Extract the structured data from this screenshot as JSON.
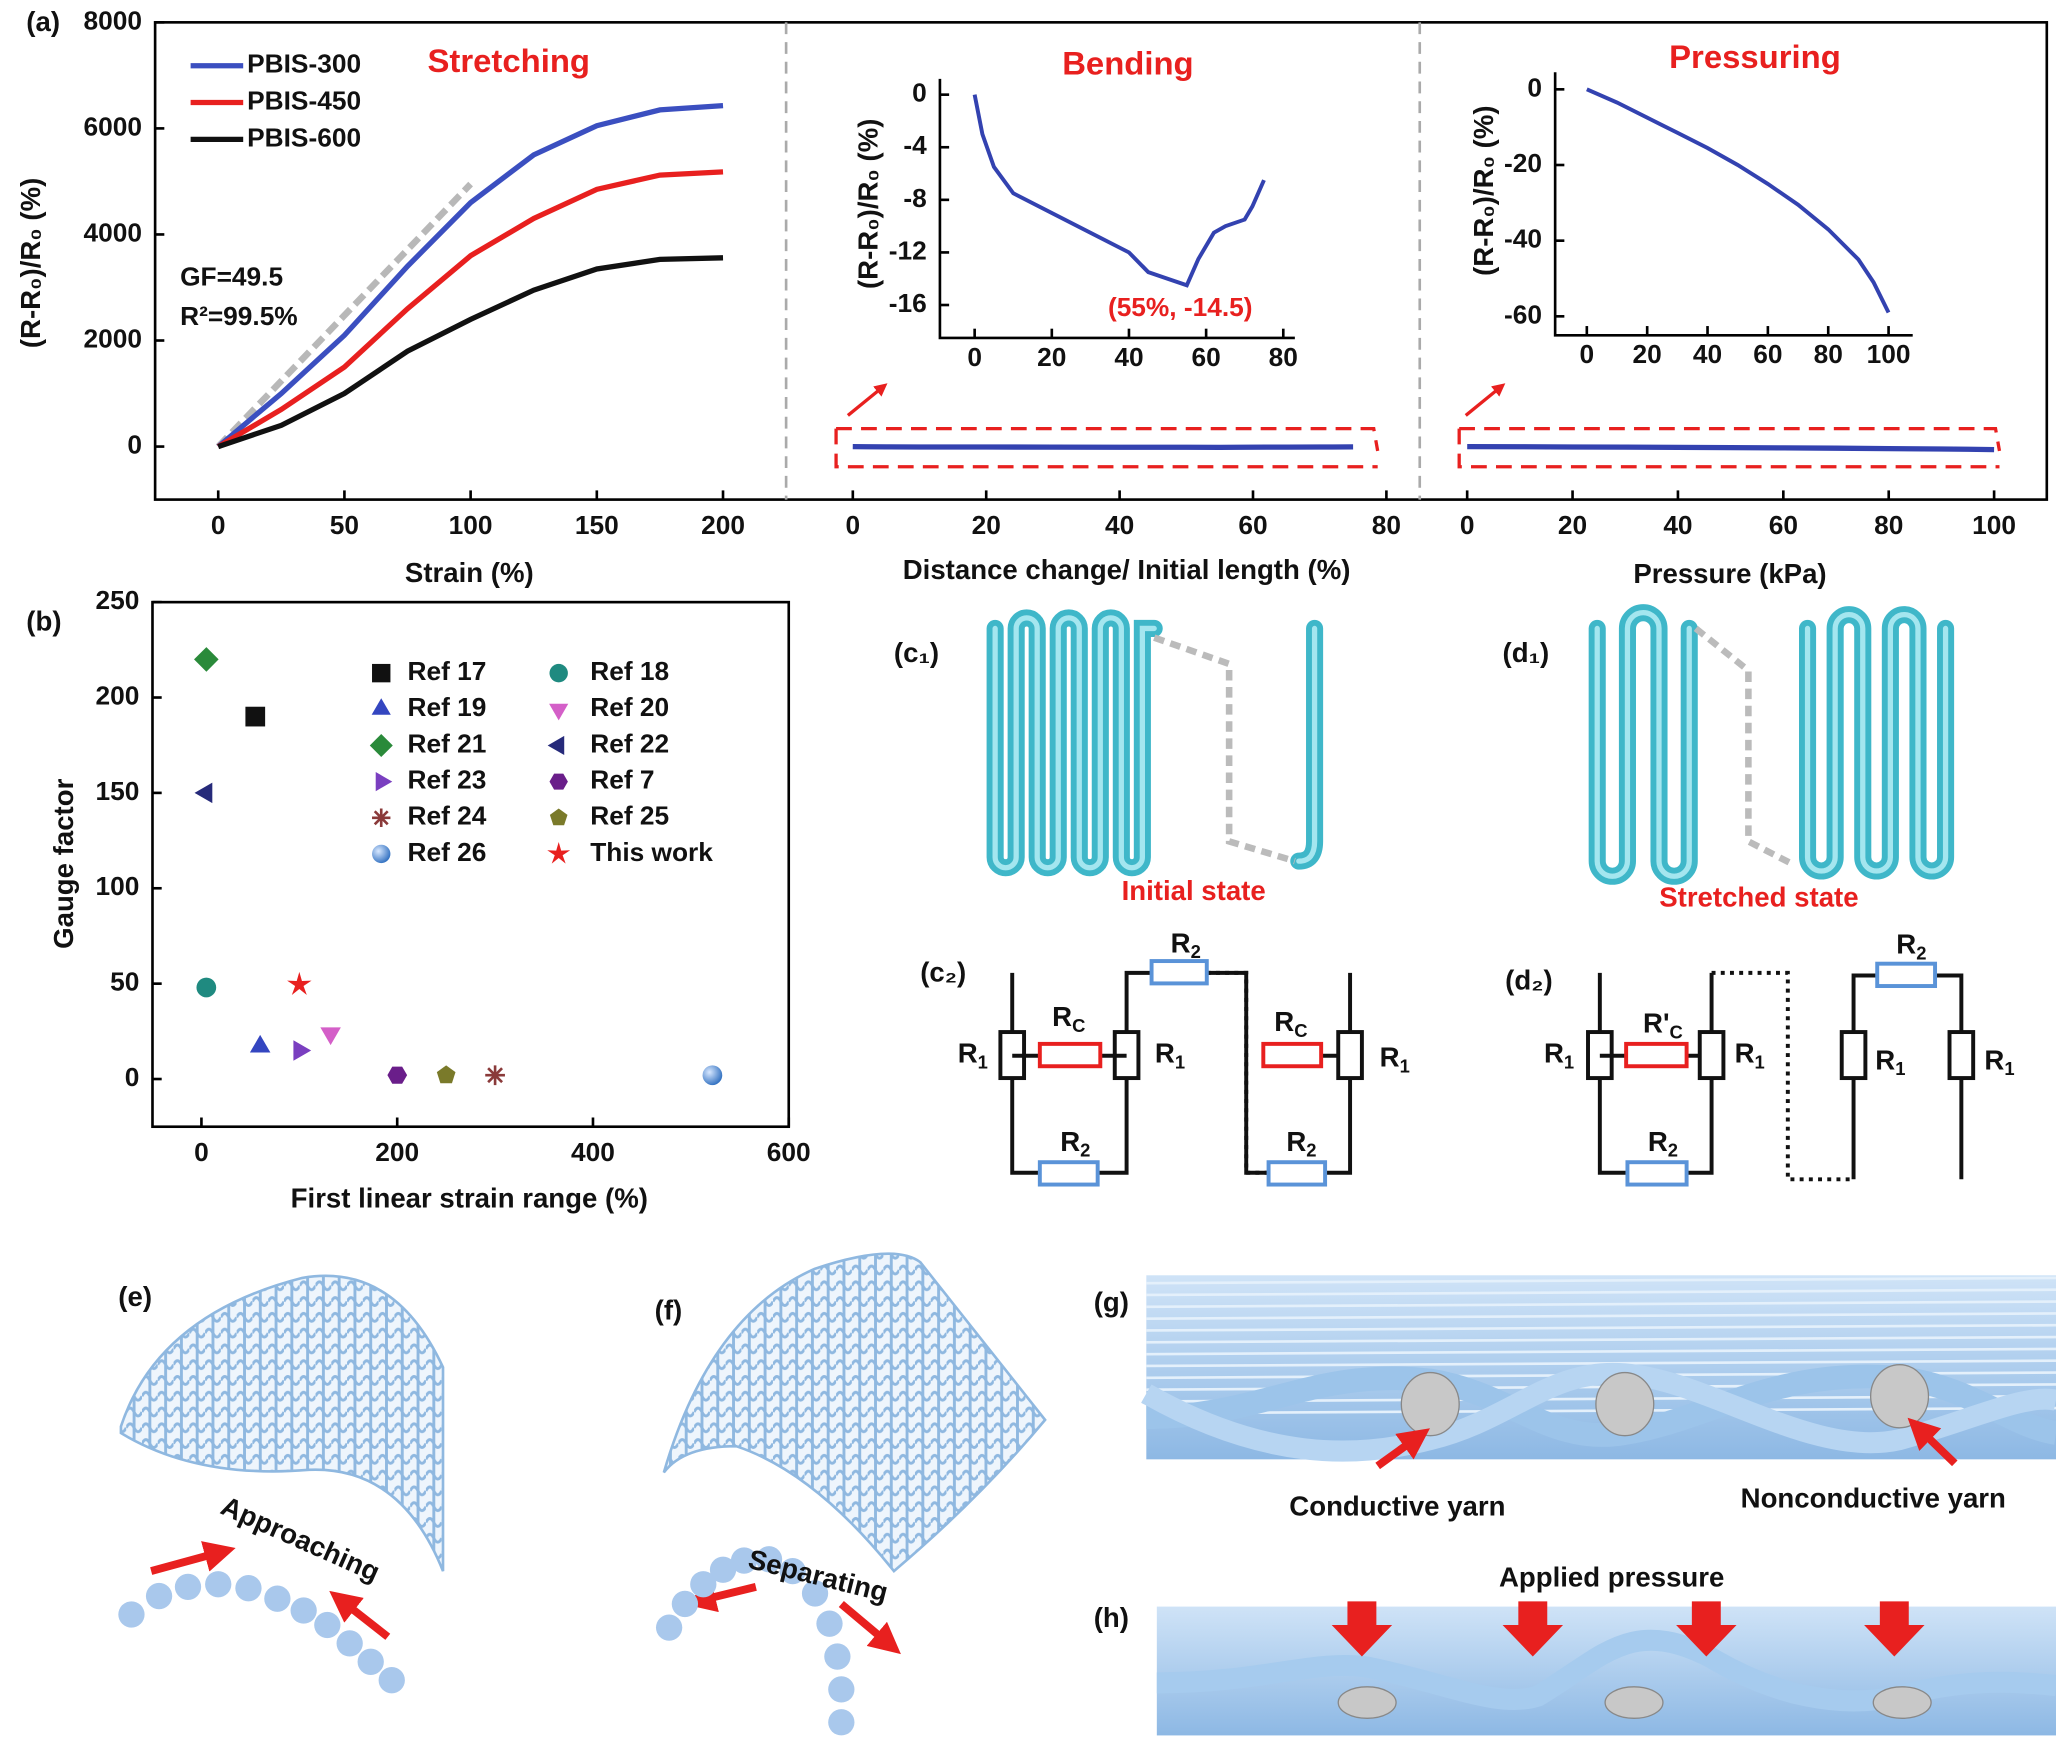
{
  "chart_data": [
    {
      "type": "line",
      "title": "Stretching",
      "xlabel": "Strain (%)",
      "ylabel": "(R-R₀)/R₀ (%)",
      "xlim": [
        -25,
        225
      ],
      "ylim": [
        -1000,
        8000
      ],
      "xticks": [
        0,
        50,
        100,
        150,
        200
      ],
      "yticks": [
        0,
        2000,
        4000,
        6000,
        8000
      ],
      "x": [
        0,
        25,
        50,
        75,
        100,
        125,
        150,
        175,
        200
      ],
      "series": [
        {
          "name": "PBIS-300",
          "color": "#3b4fc0",
          "values": [
            0,
            1000,
            2100,
            3400,
            4600,
            5500,
            6050,
            6350,
            6430
          ]
        },
        {
          "name": "PBIS-450",
          "color": "#e8201f",
          "values": [
            0,
            700,
            1500,
            2600,
            3600,
            4300,
            4850,
            5120,
            5180
          ]
        },
        {
          "name": "PBIS-600",
          "color": "#111111",
          "values": [
            0,
            400,
            1000,
            1800,
            2400,
            2950,
            3350,
            3530,
            3560
          ]
        }
      ],
      "fit": {
        "x": [
          0,
          100
        ],
        "values": [
          0,
          4950
        ],
        "color": "#b8b8b8"
      },
      "annotations": [
        "GF=49.5",
        "R²=99.5%"
      ]
    },
    {
      "type": "line",
      "title": "Bending",
      "xlabel": "Distance change/ Initial length (%)",
      "xlim": [
        -10,
        85
      ],
      "ylim": [
        -1000,
        8000
      ],
      "xticks": [
        0,
        20,
        40,
        60,
        80
      ],
      "x": [
        0,
        2,
        5,
        10,
        20,
        30,
        40,
        45,
        50,
        55,
        58,
        62,
        65,
        70,
        72,
        75
      ],
      "series": [
        {
          "color": "#3342b0",
          "values": [
            0,
            -3,
            -5.5,
            -7.5,
            -9,
            -10.5,
            -12,
            -13.5,
            -14,
            -14.5,
            -12.5,
            -10.5,
            -10,
            -9.5,
            -8.5,
            -6.5
          ]
        }
      ],
      "inset": {
        "ylabel": "(R-R₀)/R₀ (%)",
        "xlim": [
          -9,
          83
        ],
        "ylim": [
          -18.5,
          1.2
        ],
        "xticks": [
          0,
          20,
          40,
          60,
          80
        ],
        "yticks": [
          0,
          -4,
          -8,
          -12,
          -16
        ],
        "annotation": "(55%, -14.5)"
      }
    },
    {
      "type": "line",
      "title": "Pressuring",
      "xlabel": "Pressure (kPa)",
      "xlim": [
        -9,
        110
      ],
      "ylim": [
        -1000,
        8000
      ],
      "xticks": [
        0,
        20,
        40,
        60,
        80,
        100
      ],
      "x": [
        0,
        10,
        20,
        30,
        40,
        50,
        60,
        70,
        80,
        90,
        95,
        100
      ],
      "series": [
        {
          "color": "#3342b0",
          "values": [
            0,
            -3.5,
            -7.5,
            -11.5,
            -15.5,
            -20,
            -25,
            -30.5,
            -37,
            -45,
            -51,
            -59
          ]
        }
      ],
      "inset": {
        "ylabel": "(R-R₀)/R₀ (%)",
        "xlim": [
          -10.5,
          108
        ],
        "ylim": [
          -65,
          4.5
        ],
        "xticks": [
          0,
          20,
          40,
          60,
          80,
          100
        ],
        "yticks": [
          0,
          -20,
          -40,
          -60
        ]
      }
    },
    {
      "type": "scatter",
      "xlabel": "First linear strain range (%)",
      "ylabel": "Gauge factor",
      "xlim": [
        -50,
        600
      ],
      "ylim": [
        -25,
        250
      ],
      "xticks": [
        0,
        200,
        400,
        600
      ],
      "yticks": [
        0,
        50,
        100,
        150,
        200,
        250
      ],
      "series": [
        {
          "name": "Ref 17",
          "color": "#111111",
          "marker": "square",
          "x": [
            55
          ],
          "values": [
            190
          ]
        },
        {
          "name": "Ref 18",
          "color": "#1f8a80",
          "marker": "circle",
          "x": [
            5
          ],
          "values": [
            48
          ]
        },
        {
          "name": "Ref 19",
          "color": "#3446c0",
          "marker": "triangle-up",
          "x": [
            60
          ],
          "values": [
            17
          ]
        },
        {
          "name": "Ref 20",
          "color": "#d45fc8",
          "marker": "triangle-down",
          "x": [
            132
          ],
          "values": [
            24
          ]
        },
        {
          "name": "Ref 21",
          "color": "#2a8a3a",
          "marker": "diamond",
          "x": [
            5
          ],
          "values": [
            220
          ]
        },
        {
          "name": "Ref 22",
          "color": "#262a7a",
          "marker": "triangle-left",
          "x": [
            5
          ],
          "values": [
            150
          ]
        },
        {
          "name": "Ref 23",
          "color": "#7a3fc0",
          "marker": "triangle-right",
          "x": [
            100
          ],
          "values": [
            15
          ]
        },
        {
          "name": "Ref 7",
          "color": "#6a1e8a",
          "marker": "hexagon",
          "x": [
            200
          ],
          "values": [
            2
          ]
        },
        {
          "name": "Ref 24",
          "color": "#8a3a3a",
          "marker": "asterisk",
          "x": [
            300
          ],
          "values": [
            2
          ]
        },
        {
          "name": "Ref 25",
          "color": "#7a7a2a",
          "marker": "pentagon",
          "x": [
            250
          ],
          "values": [
            2
          ]
        },
        {
          "name": "Ref 26",
          "color": "#2f6fc0",
          "marker": "sphere",
          "x": [
            522
          ],
          "values": [
            2
          ]
        },
        {
          "name": "This work",
          "color": "#e8201f",
          "marker": "star",
          "x": [
            100
          ],
          "values": [
            49.5
          ]
        }
      ]
    }
  ],
  "panel_labels": [
    "(a)",
    "(b)",
    "(c₁)",
    "(d₁)",
    "(c₂)",
    "(d₂)",
    "(e)",
    "(f)",
    "(g)",
    "(h)"
  ],
  "diagrams": {
    "c1_caption": "Initial state",
    "d1_caption": "Stretched state",
    "c2_resistors": [
      {
        "base": "R",
        "sub": "2"
      },
      {
        "base": "R",
        "sub": "C"
      },
      {
        "base": "R",
        "sub": "1"
      },
      {
        "base": "R",
        "sub": "1"
      },
      {
        "base": "R",
        "sub": "C"
      },
      {
        "base": "R",
        "sub": "1"
      },
      {
        "base": "R",
        "sub": "2"
      },
      {
        "base": "R",
        "sub": "2"
      }
    ],
    "d2_resistors": [
      {
        "base": "R",
        "sub": "2"
      },
      {
        "base": "R'",
        "sub": "C"
      },
      {
        "base": "R",
        "sub": "1"
      },
      {
        "base": "R",
        "sub": "1"
      },
      {
        "base": "R",
        "sub": "1"
      },
      {
        "base": "R",
        "sub": "1"
      },
      {
        "base": "R",
        "sub": "2"
      }
    ],
    "e_caption": "Approaching",
    "f_caption": "Separating",
    "g_labels": [
      "Conductive yarn",
      "Nonconductive yarn"
    ],
    "h_caption": "Applied pressure"
  }
}
